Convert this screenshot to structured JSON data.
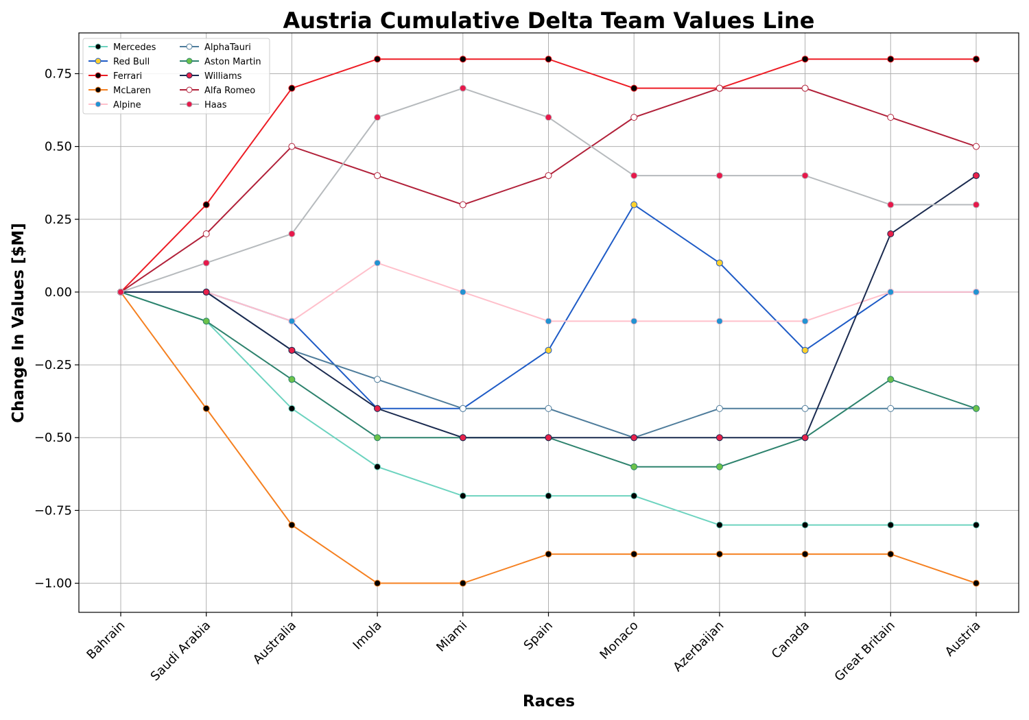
{
  "chart_data": {
    "type": "line",
    "title": "Austria Cumulative Delta Team Values Line",
    "xlabel": "Races",
    "ylabel": "Change In Values [$M]",
    "categories": [
      "Bahrain",
      "Saudi Arabia",
      "Australia",
      "Imola",
      "Miami",
      "Spain",
      "Monaco",
      "Azerbaijan",
      "Canada",
      "Great Britain",
      "Austria"
    ],
    "ylim": [
      -1.1,
      0.89
    ],
    "yticks": [
      -1.0,
      -0.75,
      -0.5,
      -0.25,
      0.0,
      0.25,
      0.5,
      0.75
    ],
    "ytick_labels": [
      "−1.00",
      "−0.75",
      "−0.50",
      "−0.25",
      "0.00",
      "0.25",
      "0.50",
      "0.75"
    ],
    "grid": true,
    "legend_position": "top-left",
    "legend_columns": 2,
    "series": [
      {
        "name": "Mercedes",
        "line_color": "#6cd3bf",
        "marker_color": "#000000",
        "marker_edge": "#6cd3bf",
        "values": [
          0.0,
          -0.1,
          -0.4,
          -0.6,
          -0.7,
          -0.7,
          -0.7,
          -0.8,
          -0.8,
          -0.8,
          -0.8
        ]
      },
      {
        "name": "Red Bull",
        "line_color": "#1e5bc6",
        "marker_color": "#ffd12e",
        "marker_edge": "#1e5bc6",
        "values": [
          0.0,
          0.0,
          -0.1,
          -0.4,
          -0.4,
          -0.2,
          0.3,
          0.1,
          -0.2,
          0.0,
          0.0
        ]
      },
      {
        "name": "Ferrari",
        "line_color": "#ed1c24",
        "marker_color": "#000000",
        "marker_edge": "#ed1c24",
        "values": [
          0.0,
          0.3,
          0.7,
          0.8,
          0.8,
          0.8,
          0.7,
          0.7,
          0.8,
          0.8,
          0.8
        ]
      },
      {
        "name": "McLaren",
        "line_color": "#f58020",
        "marker_color": "#000000",
        "marker_edge": "#f58020",
        "values": [
          0.0,
          -0.4,
          -0.8,
          -1.0,
          -1.0,
          -0.9,
          -0.9,
          -0.9,
          -0.9,
          -0.9,
          -1.0
        ]
      },
      {
        "name": "Alpine",
        "line_color": "#ffc0cb",
        "marker_color": "#2293d1",
        "marker_edge": "#ffc0cb",
        "values": [
          0.0,
          0.0,
          -0.1,
          0.1,
          0.0,
          -0.1,
          -0.1,
          -0.1,
          -0.1,
          0.0,
          0.0
        ]
      },
      {
        "name": "AlphaTauri",
        "line_color": "#4e7c9b",
        "marker_color": "#ffffff",
        "marker_edge": "#4e7c9b",
        "values": [
          0.0,
          0.0,
          -0.2,
          -0.3,
          -0.4,
          -0.4,
          -0.5,
          -0.4,
          -0.4,
          -0.4,
          -0.4
        ]
      },
      {
        "name": "Aston Martin",
        "line_color": "#2d826d",
        "marker_color": "#6cc24a",
        "marker_edge": "#2d826d",
        "values": [
          0.0,
          -0.1,
          -0.3,
          -0.5,
          -0.5,
          -0.5,
          -0.6,
          -0.6,
          -0.5,
          -0.3,
          -0.4
        ]
      },
      {
        "name": "Williams",
        "line_color": "#1a2a4f",
        "marker_color": "#e8214a",
        "marker_edge": "#1a2a4f",
        "values": [
          0.0,
          0.0,
          -0.2,
          -0.4,
          -0.5,
          -0.5,
          -0.5,
          -0.5,
          -0.5,
          0.2,
          0.4
        ]
      },
      {
        "name": "Alfa Romeo",
        "line_color": "#b12039",
        "marker_color": "#ffffff",
        "marker_edge": "#b12039",
        "values": [
          0.0,
          0.2,
          0.5,
          0.4,
          0.3,
          0.4,
          0.6,
          0.7,
          0.7,
          0.6,
          0.5
        ]
      },
      {
        "name": "Haas",
        "line_color": "#b6babd",
        "marker_color": "#e6194b",
        "marker_edge": "#b6babd",
        "values": [
          0.0,
          0.1,
          0.2,
          0.6,
          0.7,
          0.6,
          0.4,
          0.4,
          0.4,
          0.3,
          0.3
        ]
      }
    ]
  }
}
